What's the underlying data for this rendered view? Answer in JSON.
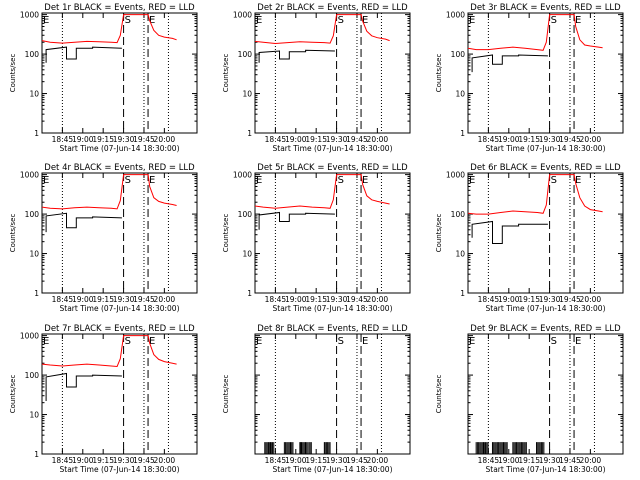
{
  "chart_data": [
    {
      "type": "line",
      "title": "Det 1r BLACK = Events, RED = LLD",
      "xlabel": "Start Time (07-Jun-14 18:30:00)",
      "ylabel": "Counts/sec",
      "yscale": "log",
      "ylim": [
        1,
        1100
      ],
      "xlim": [
        18.5,
        20.4
      ],
      "xtick_labels": [
        "18:45",
        "19:00",
        "19:15",
        "19:30",
        "19:45",
        "20:00"
      ],
      "ytick_labels": [
        "1",
        "10",
        "100",
        "1000"
      ],
      "markers": [
        {
          "label": "E",
          "x": 18.5,
          "style": "solid"
        },
        {
          "label": "S",
          "x": 19.5,
          "style": "dashed"
        },
        {
          "label": "E",
          "x": 19.8,
          "style": "dashed"
        }
      ],
      "dotted_lines_x": [
        18.75,
        19.75,
        20.05
      ],
      "series": [
        {
          "color": "#ff0000",
          "x": [
            18.5,
            18.6,
            18.75,
            18.9,
            19.05,
            19.2,
            19.35,
            19.42,
            19.46,
            19.5,
            19.8,
            19.82,
            19.87,
            19.93,
            20.0,
            20.1,
            20.15
          ],
          "y": [
            220,
            200,
            190,
            200,
            210,
            205,
            200,
            195,
            300,
            1000,
            1000,
            700,
            400,
            300,
            270,
            250,
            230
          ]
        },
        {
          "color": "#000000",
          "x": [
            18.55,
            18.55,
            18.8,
            18.8,
            18.92,
            18.92,
            19.12,
            19.12,
            19.48
          ],
          "y": [
            60,
            130,
            150,
            75,
            75,
            140,
            140,
            150,
            140
          ]
        }
      ]
    },
    {
      "type": "line",
      "title": "Det 2r BLACK = Events, RED = LLD",
      "xlabel": "Start Time (07-Jun-14 18:30:00)",
      "ylabel": "Counts/sec",
      "yscale": "log",
      "ylim": [
        1,
        1100
      ],
      "xlim": [
        18.5,
        20.4
      ],
      "xtick_labels": [
        "18:45",
        "19:00",
        "19:15",
        "19:30",
        "19:45",
        "20:00"
      ],
      "ytick_labels": [
        "1",
        "10",
        "100",
        "1000"
      ],
      "markers": [
        {
          "label": "E",
          "x": 18.5,
          "style": "solid"
        },
        {
          "label": "S",
          "x": 19.5,
          "style": "dashed"
        },
        {
          "label": "E",
          "x": 19.8,
          "style": "dashed"
        }
      ],
      "dotted_lines_x": [
        18.75,
        19.75,
        20.05
      ],
      "series": [
        {
          "color": "#ff0000",
          "x": [
            18.5,
            18.6,
            18.75,
            18.9,
            19.05,
            19.2,
            19.35,
            19.42,
            19.46,
            19.5,
            19.8,
            19.82,
            19.87,
            19.93,
            20.0,
            20.1,
            20.15
          ],
          "y": [
            210,
            200,
            185,
            195,
            205,
            200,
            195,
            190,
            290,
            1000,
            1000,
            680,
            380,
            290,
            260,
            240,
            220
          ]
        },
        {
          "color": "#000000",
          "x": [
            18.55,
            18.55,
            18.8,
            18.8,
            18.92,
            18.92,
            19.12,
            19.12,
            19.48
          ],
          "y": [
            60,
            110,
            120,
            75,
            75,
            115,
            115,
            125,
            120
          ]
        }
      ]
    },
    {
      "type": "line",
      "title": "Det 3r BLACK = Events, RED = LLD",
      "xlabel": "Start Time (07-Jun-14 18:30:00)",
      "ylabel": "Counts/sec",
      "yscale": "log",
      "ylim": [
        1,
        1100
      ],
      "xlim": [
        18.5,
        20.4
      ],
      "xtick_labels": [
        "18:45",
        "19:00",
        "19:15",
        "19:30",
        "19:45",
        "20:00"
      ],
      "ytick_labels": [
        "1",
        "10",
        "100",
        "1000"
      ],
      "markers": [
        {
          "label": "E",
          "x": 18.5,
          "style": "solid"
        },
        {
          "label": "S",
          "x": 19.5,
          "style": "dashed"
        },
        {
          "label": "E",
          "x": 19.8,
          "style": "dashed"
        }
      ],
      "dotted_lines_x": [
        18.75,
        19.75,
        20.05
      ],
      "series": [
        {
          "color": "#ff0000",
          "x": [
            18.5,
            18.6,
            18.75,
            18.9,
            19.05,
            19.2,
            19.35,
            19.42,
            19.46,
            19.5,
            19.8,
            19.82,
            19.87,
            19.93,
            20.0,
            20.1,
            20.15
          ],
          "y": [
            140,
            130,
            130,
            140,
            150,
            140,
            130,
            125,
            200,
            1000,
            1000,
            500,
            230,
            170,
            160,
            150,
            145
          ]
        },
        {
          "color": "#000000",
          "x": [
            18.55,
            18.55,
            18.8,
            18.8,
            18.92,
            18.92,
            19.12,
            19.12,
            19.48
          ],
          "y": [
            35,
            80,
            95,
            55,
            55,
            90,
            90,
            95,
            90
          ]
        }
      ]
    },
    {
      "type": "line",
      "title": "Det 4r BLACK = Events, RED = LLD",
      "xlabel": "Start Time (07-Jun-14 18:30:00)",
      "ylabel": "Counts/sec",
      "yscale": "log",
      "ylim": [
        1,
        1100
      ],
      "xlim": [
        18.5,
        20.4
      ],
      "xtick_labels": [
        "18:45",
        "19:00",
        "19:15",
        "19:30",
        "19:45",
        "20:00"
      ],
      "ytick_labels": [
        "1",
        "10",
        "100",
        "1000"
      ],
      "markers": [
        {
          "label": "E",
          "x": 18.5,
          "style": "solid"
        },
        {
          "label": "S",
          "x": 19.5,
          "style": "dashed"
        },
        {
          "label": "E",
          "x": 19.8,
          "style": "dashed"
        }
      ],
      "dotted_lines_x": [
        18.75,
        19.75,
        20.05
      ],
      "series": [
        {
          "color": "#ff0000",
          "x": [
            18.5,
            18.6,
            18.75,
            18.9,
            19.05,
            19.2,
            19.35,
            19.42,
            19.46,
            19.5,
            19.8,
            19.82,
            19.87,
            19.93,
            20.0,
            20.1,
            20.15
          ],
          "y": [
            150,
            140,
            135,
            145,
            150,
            145,
            140,
            135,
            220,
            1000,
            1000,
            500,
            260,
            210,
            190,
            175,
            165
          ]
        },
        {
          "color": "#000000",
          "x": [
            18.55,
            18.55,
            18.8,
            18.8,
            18.92,
            18.92,
            19.12,
            19.12,
            19.48
          ],
          "y": [
            35,
            90,
            105,
            45,
            45,
            80,
            80,
            85,
            80
          ]
        }
      ]
    },
    {
      "type": "line",
      "title": "Det 5r BLACK = Events, RED = LLD",
      "xlabel": "Start Time (07-Jun-14 18:30:00)",
      "ylabel": "Counts/sec",
      "yscale": "log",
      "ylim": [
        1,
        1100
      ],
      "xlim": [
        18.5,
        20.4
      ],
      "xtick_labels": [
        "18:45",
        "19:00",
        "19:15",
        "19:30",
        "19:45",
        "20:00"
      ],
      "ytick_labels": [
        "1",
        "10",
        "100",
        "1000"
      ],
      "markers": [
        {
          "label": "E",
          "x": 18.5,
          "style": "solid"
        },
        {
          "label": "S",
          "x": 19.5,
          "style": "dashed"
        },
        {
          "label": "E",
          "x": 19.8,
          "style": "dashed"
        }
      ],
      "dotted_lines_x": [
        18.75,
        19.75,
        20.05
      ],
      "series": [
        {
          "color": "#ff0000",
          "x": [
            18.5,
            18.6,
            18.75,
            18.9,
            19.05,
            19.2,
            19.35,
            19.42,
            19.46,
            19.5,
            19.8,
            19.82,
            19.87,
            19.93,
            20.0,
            20.1,
            20.15
          ],
          "y": [
            160,
            150,
            140,
            150,
            160,
            150,
            145,
            140,
            230,
            1000,
            1000,
            560,
            290,
            230,
            210,
            190,
            180
          ]
        },
        {
          "color": "#000000",
          "x": [
            18.55,
            18.55,
            18.8,
            18.8,
            18.92,
            18.92,
            19.12,
            19.12,
            19.48
          ],
          "y": [
            40,
            95,
            110,
            65,
            65,
            100,
            100,
            105,
            100
          ]
        }
      ]
    },
    {
      "type": "line",
      "title": "Det 6r BLACK = Events, RED = LLD",
      "xlabel": "Start Time (07-Jun-14 18:30:00)",
      "ylabel": "Counts/sec",
      "yscale": "log",
      "ylim": [
        1,
        1100
      ],
      "xlim": [
        18.5,
        20.4
      ],
      "xtick_labels": [
        "18:45",
        "19:00",
        "19:15",
        "19:30",
        "19:45",
        "20:00"
      ],
      "ytick_labels": [
        "1",
        "10",
        "100",
        "1000"
      ],
      "markers": [
        {
          "label": "E",
          "x": 18.5,
          "style": "solid"
        },
        {
          "label": "S",
          "x": 19.5,
          "style": "dashed"
        },
        {
          "label": "E",
          "x": 19.8,
          "style": "dashed"
        }
      ],
      "dotted_lines_x": [
        18.75,
        19.75,
        20.05
      ],
      "series": [
        {
          "color": "#ff0000",
          "x": [
            18.5,
            18.6,
            18.75,
            18.9,
            19.05,
            19.2,
            19.35,
            19.42,
            19.46,
            19.5,
            19.8,
            19.82,
            19.87,
            19.93,
            20.0,
            20.1,
            20.15
          ],
          "y": [
            105,
            100,
            100,
            110,
            120,
            115,
            110,
            105,
            170,
            1000,
            1000,
            600,
            260,
            160,
            130,
            120,
            115
          ]
        },
        {
          "color": "#000000",
          "x": [
            18.55,
            18.55,
            18.8,
            18.8,
            18.92,
            18.92,
            19.12,
            19.12,
            19.48
          ],
          "y": [
            25,
            55,
            65,
            18,
            18,
            50,
            50,
            55,
            55
          ]
        }
      ]
    },
    {
      "type": "line",
      "title": "Det 7r BLACK = Events, RED = LLD",
      "xlabel": "Start Time (07-Jun-14 18:30:00)",
      "ylabel": "Counts/sec",
      "yscale": "log",
      "ylim": [
        1,
        1100
      ],
      "xlim": [
        18.5,
        20.4
      ],
      "xtick_labels": [
        "18:45",
        "19:00",
        "19:15",
        "19:30",
        "19:45",
        "20:00"
      ],
      "ytick_labels": [
        "1",
        "10",
        "100",
        "1000"
      ],
      "markers": [
        {
          "label": "E",
          "x": 18.5,
          "style": "solid"
        },
        {
          "label": "S",
          "x": 19.5,
          "style": "dashed"
        },
        {
          "label": "E",
          "x": 19.8,
          "style": "dashed"
        }
      ],
      "dotted_lines_x": [
        18.75,
        19.75,
        20.05
      ],
      "series": [
        {
          "color": "#ff0000",
          "x": [
            18.5,
            18.6,
            18.75,
            18.9,
            19.05,
            19.2,
            19.35,
            19.42,
            19.46,
            19.5,
            19.8,
            19.82,
            19.87,
            19.93,
            20.0,
            20.1,
            20.15
          ],
          "y": [
            190,
            180,
            170,
            180,
            190,
            180,
            170,
            165,
            260,
            1000,
            1000,
            640,
            330,
            250,
            220,
            200,
            190
          ]
        },
        {
          "color": "#000000",
          "x": [
            18.55,
            18.55,
            18.8,
            18.8,
            18.92,
            18.92,
            19.12,
            19.12,
            19.48
          ],
          "y": [
            22,
            90,
            110,
            50,
            50,
            95,
            95,
            100,
            95
          ]
        }
      ]
    },
    {
      "type": "line",
      "title": "Det 8r BLACK = Events, RED = LLD",
      "xlabel": "Start Time (07-Jun-14 18:30:00)",
      "ylabel": "Counts/sec",
      "yscale": "log",
      "ylim": [
        1,
        1100
      ],
      "xlim": [
        18.5,
        20.4
      ],
      "xtick_labels": [
        "18:45",
        "19:00",
        "19:15",
        "19:30",
        "19:45",
        "20:00"
      ],
      "ytick_labels": [],
      "markers": [
        {
          "label": "E",
          "x": 18.5,
          "style": "solid"
        },
        {
          "label": "S",
          "x": 19.5,
          "style": "dashed"
        },
        {
          "label": "E",
          "x": 19.8,
          "style": "dashed"
        }
      ],
      "dotted_lines_x": [
        18.75,
        19.75,
        20.05
      ],
      "spikes": {
        "x": [
          18.62,
          18.635,
          18.65,
          18.665,
          18.68,
          18.69,
          18.7,
          18.715,
          18.73,
          18.86,
          18.875,
          18.89,
          18.905,
          18.92,
          18.935,
          18.95,
          18.965,
          19.05,
          19.06,
          19.07,
          19.085,
          19.1,
          19.115,
          19.125,
          19.14,
          19.16,
          19.175,
          19.19,
          19.35,
          19.36,
          19.375,
          19.39,
          19.405,
          19.42
        ],
        "y": 2.0,
        "base": 1
      }
    },
    {
      "type": "line",
      "title": "Det 9r BLACK = Events, RED = LLD",
      "xlabel": "Start Time (07-Jun-14 18:30:00)",
      "ylabel": "Counts/sec",
      "yscale": "log",
      "ylim": [
        1,
        1100
      ],
      "xlim": [
        18.5,
        20.4
      ],
      "xtick_labels": [
        "18:45",
        "19:00",
        "19:15",
        "19:30",
        "19:45",
        "20:00"
      ],
      "ytick_labels": [],
      "markers": [
        {
          "label": "E",
          "x": 18.5,
          "style": "solid"
        },
        {
          "label": "S",
          "x": 19.5,
          "style": "dashed"
        },
        {
          "label": "E",
          "x": 19.8,
          "style": "dashed"
        }
      ],
      "dotted_lines_x": [
        18.75,
        19.75,
        20.05
      ],
      "spikes": {
        "x": [
          18.6,
          18.615,
          18.63,
          18.645,
          18.66,
          18.675,
          18.69,
          18.7,
          18.715,
          18.73,
          18.745,
          18.8,
          18.815,
          18.83,
          18.845,
          18.86,
          18.875,
          18.89,
          18.905,
          18.92,
          18.935,
          18.95,
          18.965,
          18.98,
          19.05,
          19.065,
          19.08,
          19.095,
          19.11,
          19.125,
          19.14,
          19.155,
          19.17,
          19.185,
          19.2,
          19.215,
          19.34,
          19.355,
          19.37,
          19.385,
          19.4,
          19.415,
          19.43
        ],
        "y": 2.0,
        "base": 1
      }
    }
  ]
}
